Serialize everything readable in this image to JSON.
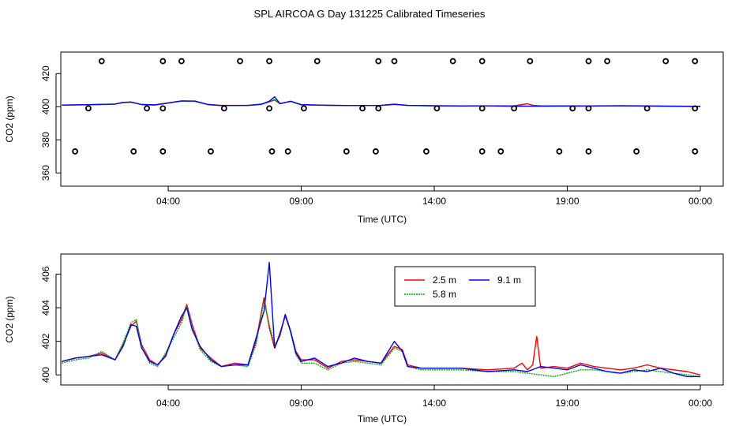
{
  "title": "SPL AIRCOA G  Day 131225  Calibrated Timeseries",
  "colors": {
    "s25": "#ff0000",
    "s58": "#00b000",
    "s91": "#0000ff",
    "axis": "#000000"
  },
  "chart_data": [
    {
      "type": "line",
      "panel": "top",
      "xlabel": "Time (UTC)",
      "ylabel": "CO2 (ppm)",
      "x_unit": "hours since 00:00 UTC",
      "xlim": [
        0,
        24
      ],
      "ylim": [
        352,
        433
      ],
      "x_ticks": [
        {
          "value": 4,
          "label": "04:00"
        },
        {
          "value": 9,
          "label": "09:00"
        },
        {
          "value": 14,
          "label": "14:00"
        },
        {
          "value": 19,
          "label": "19:00"
        },
        {
          "value": 24,
          "label": "00:00"
        }
      ],
      "y_ticks": [
        {
          "value": 360,
          "label": "360"
        },
        {
          "value": 380,
          "label": "380"
        },
        {
          "value": 400,
          "label": "400"
        },
        {
          "value": 420,
          "label": "420"
        }
      ],
      "calibration_points": [
        {
          "x": 1.5,
          "y": 427.5
        },
        {
          "x": 3.8,
          "y": 427.5
        },
        {
          "x": 4.5,
          "y": 427.5
        },
        {
          "x": 6.7,
          "y": 427.5
        },
        {
          "x": 7.8,
          "y": 427.5
        },
        {
          "x": 9.6,
          "y": 427.5
        },
        {
          "x": 11.9,
          "y": 427.5
        },
        {
          "x": 12.5,
          "y": 427.5
        },
        {
          "x": 14.7,
          "y": 427.5
        },
        {
          "x": 15.8,
          "y": 427.5
        },
        {
          "x": 17.6,
          "y": 427.5
        },
        {
          "x": 19.8,
          "y": 427.5
        },
        {
          "x": 20.5,
          "y": 427.5
        },
        {
          "x": 22.7,
          "y": 427.5
        },
        {
          "x": 23.8,
          "y": 427.5
        },
        {
          "x": 1.0,
          "y": 399
        },
        {
          "x": 3.2,
          "y": 399
        },
        {
          "x": 3.8,
          "y": 399
        },
        {
          "x": 6.1,
          "y": 399
        },
        {
          "x": 7.8,
          "y": 399
        },
        {
          "x": 9.1,
          "y": 399
        },
        {
          "x": 11.3,
          "y": 399
        },
        {
          "x": 11.9,
          "y": 399
        },
        {
          "x": 14.1,
          "y": 399
        },
        {
          "x": 15.8,
          "y": 399
        },
        {
          "x": 17.0,
          "y": 399
        },
        {
          "x": 19.2,
          "y": 399
        },
        {
          "x": 19.8,
          "y": 399
        },
        {
          "x": 22.0,
          "y": 399
        },
        {
          "x": 23.8,
          "y": 399
        },
        {
          "x": 0.5,
          "y": 373
        },
        {
          "x": 2.7,
          "y": 373
        },
        {
          "x": 3.8,
          "y": 373
        },
        {
          "x": 5.6,
          "y": 373
        },
        {
          "x": 7.9,
          "y": 373
        },
        {
          "x": 8.5,
          "y": 373
        },
        {
          "x": 10.7,
          "y": 373
        },
        {
          "x": 11.8,
          "y": 373
        },
        {
          "x": 13.7,
          "y": 373
        },
        {
          "x": 15.8,
          "y": 373
        },
        {
          "x": 16.5,
          "y": 373
        },
        {
          "x": 18.7,
          "y": 373
        },
        {
          "x": 19.8,
          "y": 373
        },
        {
          "x": 21.6,
          "y": 373
        },
        {
          "x": 23.8,
          "y": 373
        }
      ],
      "series": [
        {
          "key": "s25",
          "x": [
            0,
            1,
            2,
            2.3,
            2.6,
            3,
            3.5,
            4,
            4.5,
            5,
            5.5,
            6,
            7,
            7.5,
            7.8,
            8,
            8.2,
            8.6,
            9,
            10,
            11,
            12,
            12.5,
            13,
            14,
            15,
            16,
            17,
            17.5,
            17.7,
            18,
            19,
            20,
            21,
            22,
            23,
            24
          ],
          "y": [
            401,
            401.2,
            401.6,
            402.5,
            402.8,
            401.3,
            401.1,
            402.3,
            403.5,
            403.3,
            401.3,
            400.8,
            400.8,
            401.5,
            403,
            404,
            401.8,
            403.2,
            401.2,
            400.9,
            400.7,
            400.8,
            401.5,
            400.8,
            400.6,
            400.5,
            400.5,
            400.5,
            401.8,
            400.9,
            400.5,
            400.5,
            400.5,
            400.6,
            400.5,
            400.4,
            400.2
          ]
        },
        {
          "key": "s58",
          "x": [
            0,
            1,
            2,
            2.3,
            2.6,
            3,
            3.5,
            4,
            4.5,
            5,
            5.5,
            6,
            7,
            7.5,
            7.8,
            8,
            8.2,
            8.6,
            9,
            10,
            11,
            12,
            12.5,
            13,
            14,
            15,
            16,
            17,
            18,
            19,
            20,
            21,
            22,
            23,
            24
          ],
          "y": [
            401,
            401.1,
            401.5,
            402.6,
            402.9,
            401.2,
            401,
            402.2,
            403.3,
            403.2,
            401.2,
            400.7,
            400.7,
            401.3,
            402.9,
            404.5,
            401.9,
            403.1,
            401.1,
            400.8,
            400.7,
            400.7,
            401.3,
            400.7,
            400.5,
            400.4,
            400.4,
            400.2,
            400.2,
            400.3,
            400.4,
            400.5,
            400.4,
            400.3,
            400.1
          ]
        },
        {
          "key": "s91",
          "x": [
            0,
            1,
            2,
            2.3,
            2.6,
            3,
            3.5,
            4,
            4.5,
            5,
            5.5,
            6,
            7,
            7.5,
            7.8,
            8,
            8.2,
            8.6,
            9,
            10,
            11,
            12,
            12.5,
            13,
            14,
            15,
            16,
            17,
            18,
            19,
            20,
            21,
            22,
            23,
            24
          ],
          "y": [
            401,
            401.2,
            401.6,
            402.6,
            402.8,
            401.3,
            401.1,
            402.2,
            403.5,
            403.4,
            401.3,
            400.7,
            400.8,
            401.5,
            403.3,
            406,
            401.9,
            403.3,
            401.2,
            400.9,
            400.7,
            400.8,
            401.5,
            400.8,
            400.5,
            400.4,
            400.5,
            400.3,
            400.3,
            400.4,
            400.4,
            400.5,
            400.4,
            400.2,
            400.1
          ]
        }
      ]
    },
    {
      "type": "line",
      "panel": "bottom",
      "xlabel": "Time (UTC)",
      "ylabel": "CO2 (ppm)",
      "x_unit": "hours since 00:00 UTC",
      "xlim": [
        0,
        24
      ],
      "ylim": [
        399.4,
        407.2
      ],
      "x_ticks": [
        {
          "value": 4,
          "label": "04:00"
        },
        {
          "value": 9,
          "label": "09:00"
        },
        {
          "value": 14,
          "label": "14:00"
        },
        {
          "value": 19,
          "label": "19:00"
        },
        {
          "value": 24,
          "label": "00:00"
        }
      ],
      "y_ticks": [
        {
          "value": 400,
          "label": "400"
        },
        {
          "value": 402,
          "label": "402"
        },
        {
          "value": 404,
          "label": "404"
        },
        {
          "value": 406,
          "label": "406"
        }
      ],
      "legend": {
        "placement": "top-center",
        "entries": [
          {
            "key": "s25",
            "label": "2.5 m"
          },
          {
            "key": "s91",
            "label": "9.1 m"
          },
          {
            "key": "s58",
            "label": "5.8 m"
          }
        ]
      },
      "series": [
        {
          "key": "s25",
          "name": "2.5 m",
          "x": [
            0,
            0.5,
            1,
            1.5,
            2,
            2.3,
            2.6,
            2.8,
            3,
            3.3,
            3.6,
            3.9,
            4.2,
            4.5,
            4.7,
            4.9,
            5.2,
            5.6,
            6,
            6.5,
            7,
            7.3,
            7.6,
            7.8,
            8,
            8.2,
            8.4,
            8.6,
            8.8,
            9,
            9.5,
            10,
            10.5,
            11,
            11.5,
            12,
            12.5,
            12.8,
            13,
            13.5,
            14,
            15,
            16,
            17,
            17.3,
            17.5,
            17.7,
            17.85,
            18,
            18.5,
            19,
            19.5,
            20,
            20.5,
            21,
            21.5,
            22,
            22.5,
            23,
            23.5,
            24
          ],
          "y": [
            400.8,
            401.0,
            401.1,
            401.3,
            400.9,
            401.8,
            402.9,
            403.2,
            401.8,
            400.9,
            400.6,
            401.2,
            402.4,
            403.3,
            404.2,
            403.0,
            401.6,
            401.0,
            400.5,
            400.7,
            400.6,
            402.0,
            404.6,
            402.8,
            401.6,
            402.5,
            403.5,
            402.6,
            401.4,
            400.9,
            400.9,
            400.4,
            400.8,
            400.9,
            400.8,
            400.7,
            401.7,
            401.5,
            400.6,
            400.4,
            400.4,
            400.4,
            400.3,
            400.4,
            400.7,
            400.3,
            400.6,
            402.3,
            400.4,
            400.5,
            400.4,
            400.7,
            400.5,
            400.4,
            400.3,
            400.4,
            400.6,
            400.4,
            400.3,
            400.2,
            400.0
          ]
        },
        {
          "key": "s58",
          "name": "5.8 m",
          "x": [
            0,
            0.5,
            1,
            1.5,
            2,
            2.3,
            2.6,
            2.8,
            3,
            3.3,
            3.6,
            3.9,
            4.2,
            4.5,
            4.7,
            4.9,
            5.2,
            5.6,
            6,
            6.5,
            7,
            7.3,
            7.6,
            7.8,
            8,
            8.2,
            8.4,
            8.6,
            8.8,
            9,
            9.5,
            10,
            10.5,
            11,
            11.5,
            12,
            12.5,
            12.8,
            13,
            13.5,
            14,
            15,
            16,
            17,
            17.5,
            18,
            18.5,
            19,
            19.5,
            20,
            20.5,
            21,
            21.5,
            22,
            22.5,
            23,
            23.5,
            24
          ],
          "y": [
            400.7,
            400.9,
            401.0,
            401.4,
            400.9,
            401.9,
            403.1,
            403.3,
            401.7,
            400.7,
            400.5,
            401.3,
            402.2,
            403.1,
            404.1,
            402.8,
            401.5,
            400.8,
            400.5,
            400.6,
            400.5,
            401.8,
            404.4,
            403.0,
            401.8,
            402.3,
            403.6,
            402.5,
            401.2,
            400.7,
            400.7,
            400.3,
            400.7,
            400.8,
            400.7,
            400.6,
            401.6,
            401.4,
            400.5,
            400.3,
            400.3,
            400.3,
            400.2,
            400.2,
            400.1,
            400.0,
            399.9,
            400.1,
            400.3,
            400.3,
            400.2,
            400.1,
            400.2,
            400.3,
            400.2,
            400.1,
            400.0,
            399.9
          ]
        },
        {
          "key": "s91",
          "name": "9.1 m",
          "x": [
            0,
            0.5,
            1,
            1.5,
            2,
            2.3,
            2.6,
            2.8,
            3,
            3.3,
            3.6,
            3.9,
            4.2,
            4.5,
            4.7,
            4.9,
            5.2,
            5.6,
            6,
            6.5,
            7,
            7.3,
            7.6,
            7.8,
            8,
            8.2,
            8.4,
            8.6,
            8.8,
            9,
            9.5,
            10,
            10.5,
            11,
            11.5,
            12,
            12.5,
            12.8,
            13,
            13.5,
            14,
            15,
            16,
            17,
            17.5,
            18,
            18.5,
            19,
            19.5,
            20,
            20.5,
            21,
            21.5,
            22,
            22.5,
            23,
            23.5,
            24
          ],
          "y": [
            400.8,
            401.0,
            401.1,
            401.2,
            400.9,
            401.7,
            403.0,
            402.9,
            401.6,
            400.8,
            400.6,
            401.1,
            402.4,
            403.5,
            404.0,
            402.7,
            401.7,
            400.9,
            400.5,
            400.6,
            400.6,
            402.2,
            403.8,
            406.7,
            401.6,
            402.4,
            403.6,
            402.6,
            401.3,
            400.8,
            401.0,
            400.5,
            400.7,
            401.0,
            400.8,
            400.7,
            402.0,
            401.4,
            400.5,
            400.4,
            400.4,
            400.4,
            400.2,
            400.3,
            400.2,
            400.5,
            400.4,
            400.3,
            400.6,
            400.4,
            400.2,
            400.1,
            400.3,
            400.2,
            400.4,
            400.1,
            399.9,
            399.9
          ]
        }
      ]
    }
  ]
}
